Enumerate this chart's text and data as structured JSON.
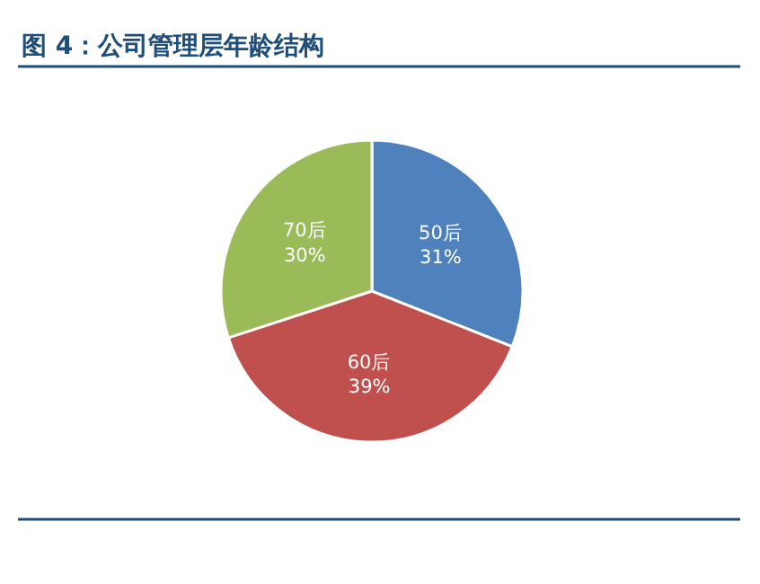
{
  "chart_data": {
    "type": "pie",
    "title": "图 4：公司管理层年龄结构",
    "categories": [
      "50后",
      "60后",
      "70后"
    ],
    "values": [
      31,
      39,
      30
    ],
    "colors": [
      "#4f81bd",
      "#c0504d",
      "#9bbb59"
    ],
    "value_labels": [
      "31%",
      "39%",
      "30%"
    ]
  }
}
